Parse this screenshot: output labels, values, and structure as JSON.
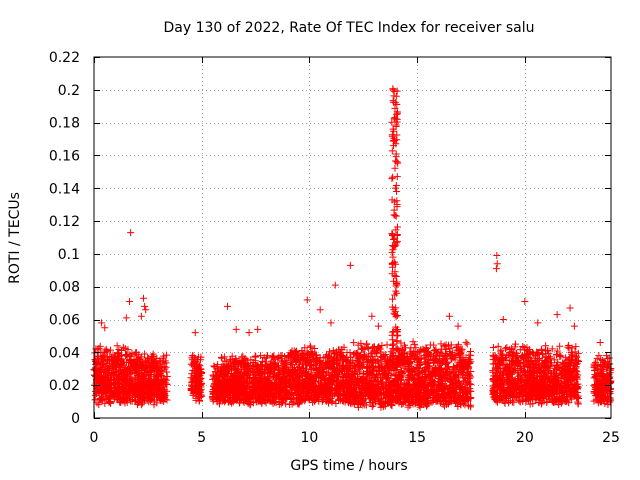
{
  "chart_data": {
    "type": "scatter",
    "title": "Day 130 of 2022, Rate Of TEC Index for receiver salu",
    "xlabel": "GPS time / hours",
    "ylabel": "ROTI / TECUs",
    "xlim": [
      0,
      24
    ],
    "ylim": [
      0,
      0.22
    ],
    "xticks": [
      0,
      5,
      10,
      15,
      20,
      25
    ],
    "xtick_labels": [
      "0",
      "5",
      "10",
      "15",
      "20",
      "25"
    ],
    "yticks": [
      0,
      0.02,
      0.04,
      0.06,
      0.08,
      0.1,
      0.12,
      0.14,
      0.16,
      0.18,
      0.2,
      0.22
    ],
    "ytick_labels": [
      "0",
      "0.02",
      "0.04",
      "0.06",
      "0.08",
      "0.1",
      "0.12",
      "0.14",
      "0.16",
      "0.18",
      "0.2",
      "0.22"
    ],
    "grid": true,
    "marker": "plus",
    "color": "#ff0000",
    "dense_bands": [
      {
        "x_start": 0.0,
        "x_end": 1.6,
        "y_min": 0.008,
        "y_max": 0.045
      },
      {
        "x_start": 1.6,
        "x_end": 3.4,
        "y_min": 0.008,
        "y_max": 0.04
      },
      {
        "x_start": 4.5,
        "x_end": 5.0,
        "y_min": 0.01,
        "y_max": 0.038
      },
      {
        "x_start": 5.5,
        "x_end": 9.0,
        "y_min": 0.008,
        "y_max": 0.038
      },
      {
        "x_start": 9.0,
        "x_end": 12.0,
        "y_min": 0.008,
        "y_max": 0.045
      },
      {
        "x_start": 12.0,
        "x_end": 17.5,
        "y_min": 0.006,
        "y_max": 0.048
      },
      {
        "x_start": 18.5,
        "x_end": 22.5,
        "y_min": 0.008,
        "y_max": 0.045
      },
      {
        "x_start": 23.2,
        "x_end": 24.0,
        "y_min": 0.008,
        "y_max": 0.038
      }
    ],
    "points": [
      {
        "x": 1.7,
        "y": 0.113
      },
      {
        "x": 1.65,
        "y": 0.071
      },
      {
        "x": 2.3,
        "y": 0.073
      },
      {
        "x": 2.35,
        "y": 0.068
      },
      {
        "x": 2.4,
        "y": 0.066
      },
      {
        "x": 2.2,
        "y": 0.062
      },
      {
        "x": 0.35,
        "y": 0.058
      },
      {
        "x": 0.5,
        "y": 0.055
      },
      {
        "x": 1.5,
        "y": 0.061
      },
      {
        "x": 4.7,
        "y": 0.052
      },
      {
        "x": 6.2,
        "y": 0.068
      },
      {
        "x": 6.6,
        "y": 0.054
      },
      {
        "x": 7.2,
        "y": 0.052
      },
      {
        "x": 7.6,
        "y": 0.054
      },
      {
        "x": 9.9,
        "y": 0.072
      },
      {
        "x": 10.5,
        "y": 0.066
      },
      {
        "x": 11.2,
        "y": 0.081
      },
      {
        "x": 11.9,
        "y": 0.093
      },
      {
        "x": 11.0,
        "y": 0.058
      },
      {
        "x": 12.9,
        "y": 0.062
      },
      {
        "x": 13.2,
        "y": 0.056
      },
      {
        "x": 16.5,
        "y": 0.062
      },
      {
        "x": 16.9,
        "y": 0.056
      },
      {
        "x": 18.7,
        "y": 0.099
      },
      {
        "x": 18.72,
        "y": 0.094
      },
      {
        "x": 18.68,
        "y": 0.091
      },
      {
        "x": 19.0,
        "y": 0.06
      },
      {
        "x": 20.0,
        "y": 0.071
      },
      {
        "x": 20.6,
        "y": 0.058
      },
      {
        "x": 21.5,
        "y": 0.063
      },
      {
        "x": 22.1,
        "y": 0.067
      },
      {
        "x": 22.3,
        "y": 0.056
      },
      {
        "x": 23.5,
        "y": 0.046
      }
    ],
    "spike": {
      "x_start": 13.82,
      "x_end": 14.1,
      "y_min": 0.03,
      "y_max": 0.202,
      "count": 120
    }
  }
}
